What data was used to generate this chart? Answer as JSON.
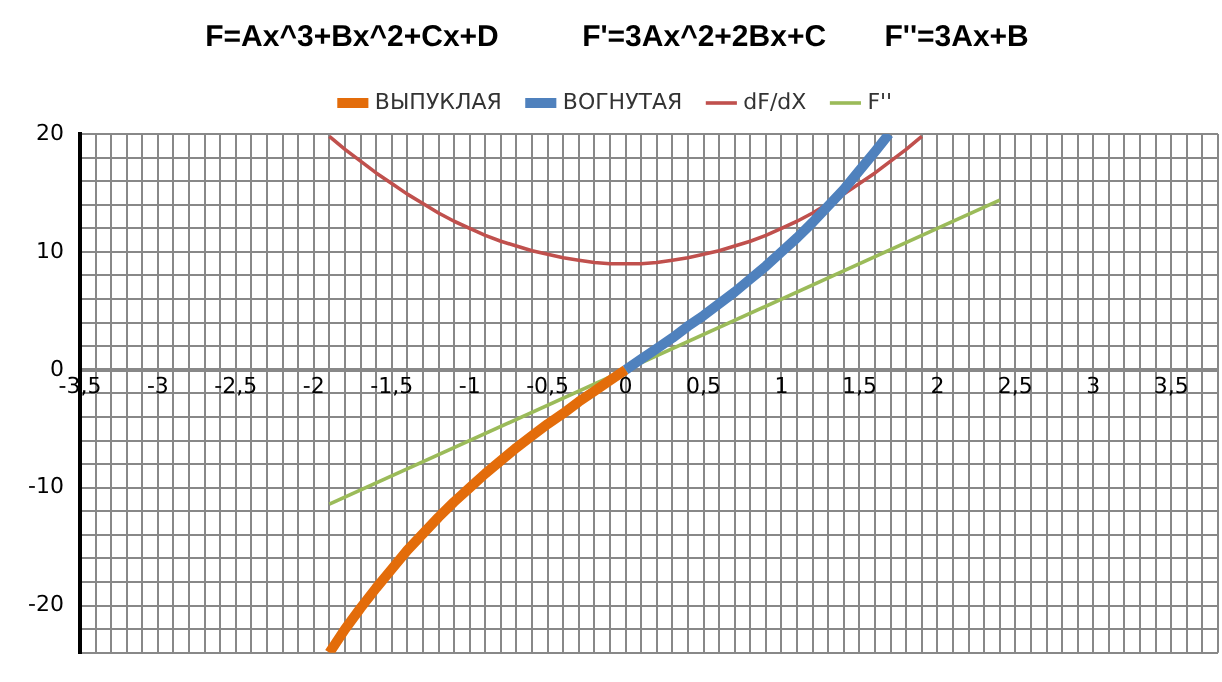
{
  "chart_data": {
    "type": "line",
    "title": "F=Ax^3+Bx^2+Cx+D          F'=3Ax^2+2Bx+C       F''=3Ax+B",
    "series": [
      {
        "name": "ВЫПУКЛАЯ",
        "color": "#e36c0a",
        "x": [
          -1.9,
          -1.8,
          -1.7,
          -1.6,
          -1.5,
          -1.4,
          -1.3,
          -1.2,
          -1.1,
          -1.0,
          -0.9,
          -0.8,
          -0.7,
          -0.6,
          -0.5,
          -0.4,
          -0.3,
          -0.2,
          -0.1,
          0
        ],
        "values": [
          -24.0,
          -22.0,
          -20.2,
          -18.5,
          -16.9,
          -15.3,
          -13.9,
          -12.5,
          -11.2,
          -10.0,
          -8.8,
          -7.7,
          -6.6,
          -5.6,
          -4.6,
          -3.7,
          -2.7,
          -1.8,
          -0.9,
          0
        ]
      },
      {
        "name": "ВОГНУТАЯ",
        "color": "#4f81bd",
        "x": [
          0,
          0.1,
          0.2,
          0.3,
          0.4,
          0.5,
          0.6,
          0.7,
          0.8,
          0.9,
          1.0,
          1.1,
          1.2,
          1.3,
          1.4,
          1.5,
          1.6,
          1.69
        ],
        "values": [
          0,
          0.9,
          1.8,
          2.7,
          3.7,
          4.6,
          5.6,
          6.6,
          7.7,
          8.8,
          10.0,
          11.2,
          12.5,
          13.9,
          15.3,
          16.9,
          18.5,
          20.0
        ]
      },
      {
        "name": "dF/dX",
        "color": "#c0504d",
        "x": [
          -1.9,
          -1.8,
          -1.7,
          -1.6,
          -1.5,
          -1.4,
          -1.3,
          -1.2,
          -1.1,
          -1.0,
          -0.9,
          -0.8,
          -0.7,
          -0.6,
          -0.5,
          -0.4,
          -0.3,
          -0.2,
          -0.1,
          0,
          0.1,
          0.2,
          0.3,
          0.4,
          0.5,
          0.6,
          0.7,
          0.8,
          0.9,
          1.0,
          1.1,
          1.2,
          1.3,
          1.4,
          1.5,
          1.6,
          1.7,
          1.8,
          1.9
        ],
        "values": [
          19.8,
          18.7,
          17.7,
          16.7,
          15.8,
          14.9,
          14.1,
          13.3,
          12.6,
          12.0,
          11.4,
          10.9,
          10.5,
          10.1,
          9.8,
          9.5,
          9.3,
          9.1,
          9.0,
          9.0,
          9.0,
          9.1,
          9.3,
          9.5,
          9.8,
          10.1,
          10.5,
          10.9,
          11.4,
          12.0,
          12.6,
          13.3,
          14.1,
          14.9,
          15.8,
          16.7,
          17.7,
          18.7,
          19.8
        ]
      },
      {
        "name": "F''",
        "color": "#9bbb59",
        "x": [
          -1.9,
          2.4
        ],
        "values": [
          -11.4,
          14.4
        ]
      }
    ],
    "xlim": [
      -3.5,
      3.8
    ],
    "xticks": [
      {
        "value": -3.5,
        "label": "-3,5"
      },
      {
        "value": -3.4,
        "label": null
      },
      {
        "value": -3.3,
        "label": null
      },
      {
        "value": -3.2,
        "label": null
      },
      {
        "value": -3.1,
        "label": null
      },
      -3,
      {
        "value": -2.9,
        "label": null
      },
      {
        "value": -2.8,
        "label": null
      },
      {
        "value": -2.7,
        "label": null
      },
      {
        "value": -2.6,
        "label": null
      },
      {
        "value": -2.5,
        "label": "-2,5"
      },
      {
        "value": -2.4,
        "label": null
      },
      {
        "value": -2.3,
        "label": null
      },
      {
        "value": -2.2,
        "label": null
      },
      {
        "value": -2.1,
        "label": null
      },
      -2,
      {
        "value": -1.9,
        "label": null
      },
      {
        "value": -1.8,
        "label": null
      },
      {
        "value": -1.7,
        "label": null
      },
      {
        "value": -1.6,
        "label": null
      },
      {
        "value": -1.5,
        "label": "-1,5"
      },
      {
        "value": -1.4,
        "label": null
      },
      {
        "value": -1.3,
        "label": null
      },
      {
        "value": -1.2,
        "label": null
      },
      {
        "value": -1.1,
        "label": null
      },
      -1,
      {
        "value": -0.9,
        "label": null
      },
      {
        "value": -0.8,
        "label": null
      },
      {
        "value": -0.7,
        "label": null
      },
      {
        "value": -0.6,
        "label": null
      },
      {
        "value": -0.5,
        "label": "-0,5"
      },
      {
        "value": -0.4,
        "label": null
      },
      {
        "value": -0.3,
        "label": null
      },
      {
        "value": -0.2,
        "label": null
      },
      {
        "value": -0.1,
        "label": null
      },
      0,
      {
        "value": 0.1,
        "label": null
      },
      {
        "value": 0.2,
        "label": null
      },
      {
        "value": 0.3,
        "label": null
      },
      {
        "value": 0.4,
        "label": null
      },
      {
        "value": 0.5,
        "label": "0,5"
      },
      {
        "value": 0.6,
        "label": null
      },
      {
        "value": 0.7,
        "label": null
      },
      {
        "value": 0.8,
        "label": null
      },
      {
        "value": 0.9,
        "label": null
      },
      1,
      {
        "value": 1.1,
        "label": null
      },
      {
        "value": 1.2,
        "label": null
      },
      {
        "value": 1.3,
        "label": null
      },
      {
        "value": 1.4,
        "label": null
      },
      {
        "value": 1.5,
        "label": "1,5"
      },
      {
        "value": 1.6,
        "label": null
      },
      {
        "value": 1.7,
        "label": null
      },
      {
        "value": 1.8,
        "label": null
      },
      {
        "value": 1.9,
        "label": null
      },
      2,
      {
        "value": 2.1,
        "label": null
      },
      {
        "value": 2.2,
        "label": null
      },
      {
        "value": 2.3,
        "label": null
      },
      {
        "value": 2.4,
        "label": null
      },
      {
        "value": 2.5,
        "label": "2,5"
      },
      {
        "value": 2.6,
        "label": null
      },
      {
        "value": 2.7,
        "label": null
      },
      {
        "value": 2.8,
        "label": null
      },
      {
        "value": 2.9,
        "label": null
      },
      3,
      {
        "value": 3.1,
        "label": null
      },
      {
        "value": 3.2,
        "label": null
      },
      {
        "value": 3.3,
        "label": null
      },
      {
        "value": 3.4,
        "label": null
      },
      {
        "value": 3.5,
        "label": "3,5"
      },
      {
        "value": 3.6,
        "label": null
      },
      {
        "value": 3.7,
        "label": null
      },
      {
        "value": 3.8,
        "label": null
      }
    ],
    "ylim": [
      -24,
      20
    ],
    "yticks": [
      {
        "value": -24,
        "label": null
      },
      {
        "value": -22,
        "label": null
      },
      -20,
      {
        "value": -18,
        "label": null
      },
      {
        "value": -16,
        "label": null
      },
      {
        "value": -14,
        "label": null
      },
      {
        "value": -12,
        "label": null
      },
      -10,
      {
        "value": -8,
        "label": null
      },
      {
        "value": -6,
        "label": null
      },
      {
        "value": -4,
        "label": null
      },
      {
        "value": -2,
        "label": null
      },
      0,
      {
        "value": 2,
        "label": null
      },
      {
        "value": 4,
        "label": null
      },
      {
        "value": 6,
        "label": null
      },
      {
        "value": 8,
        "label": null
      },
      10,
      {
        "value": 12,
        "label": null
      },
      {
        "value": 14,
        "label": null
      },
      {
        "value": 16,
        "label": null
      },
      {
        "value": 18,
        "label": null
      },
      20
    ],
    "grid": true,
    "legend": "top",
    "marker": "none",
    "line_style": "solid"
  }
}
